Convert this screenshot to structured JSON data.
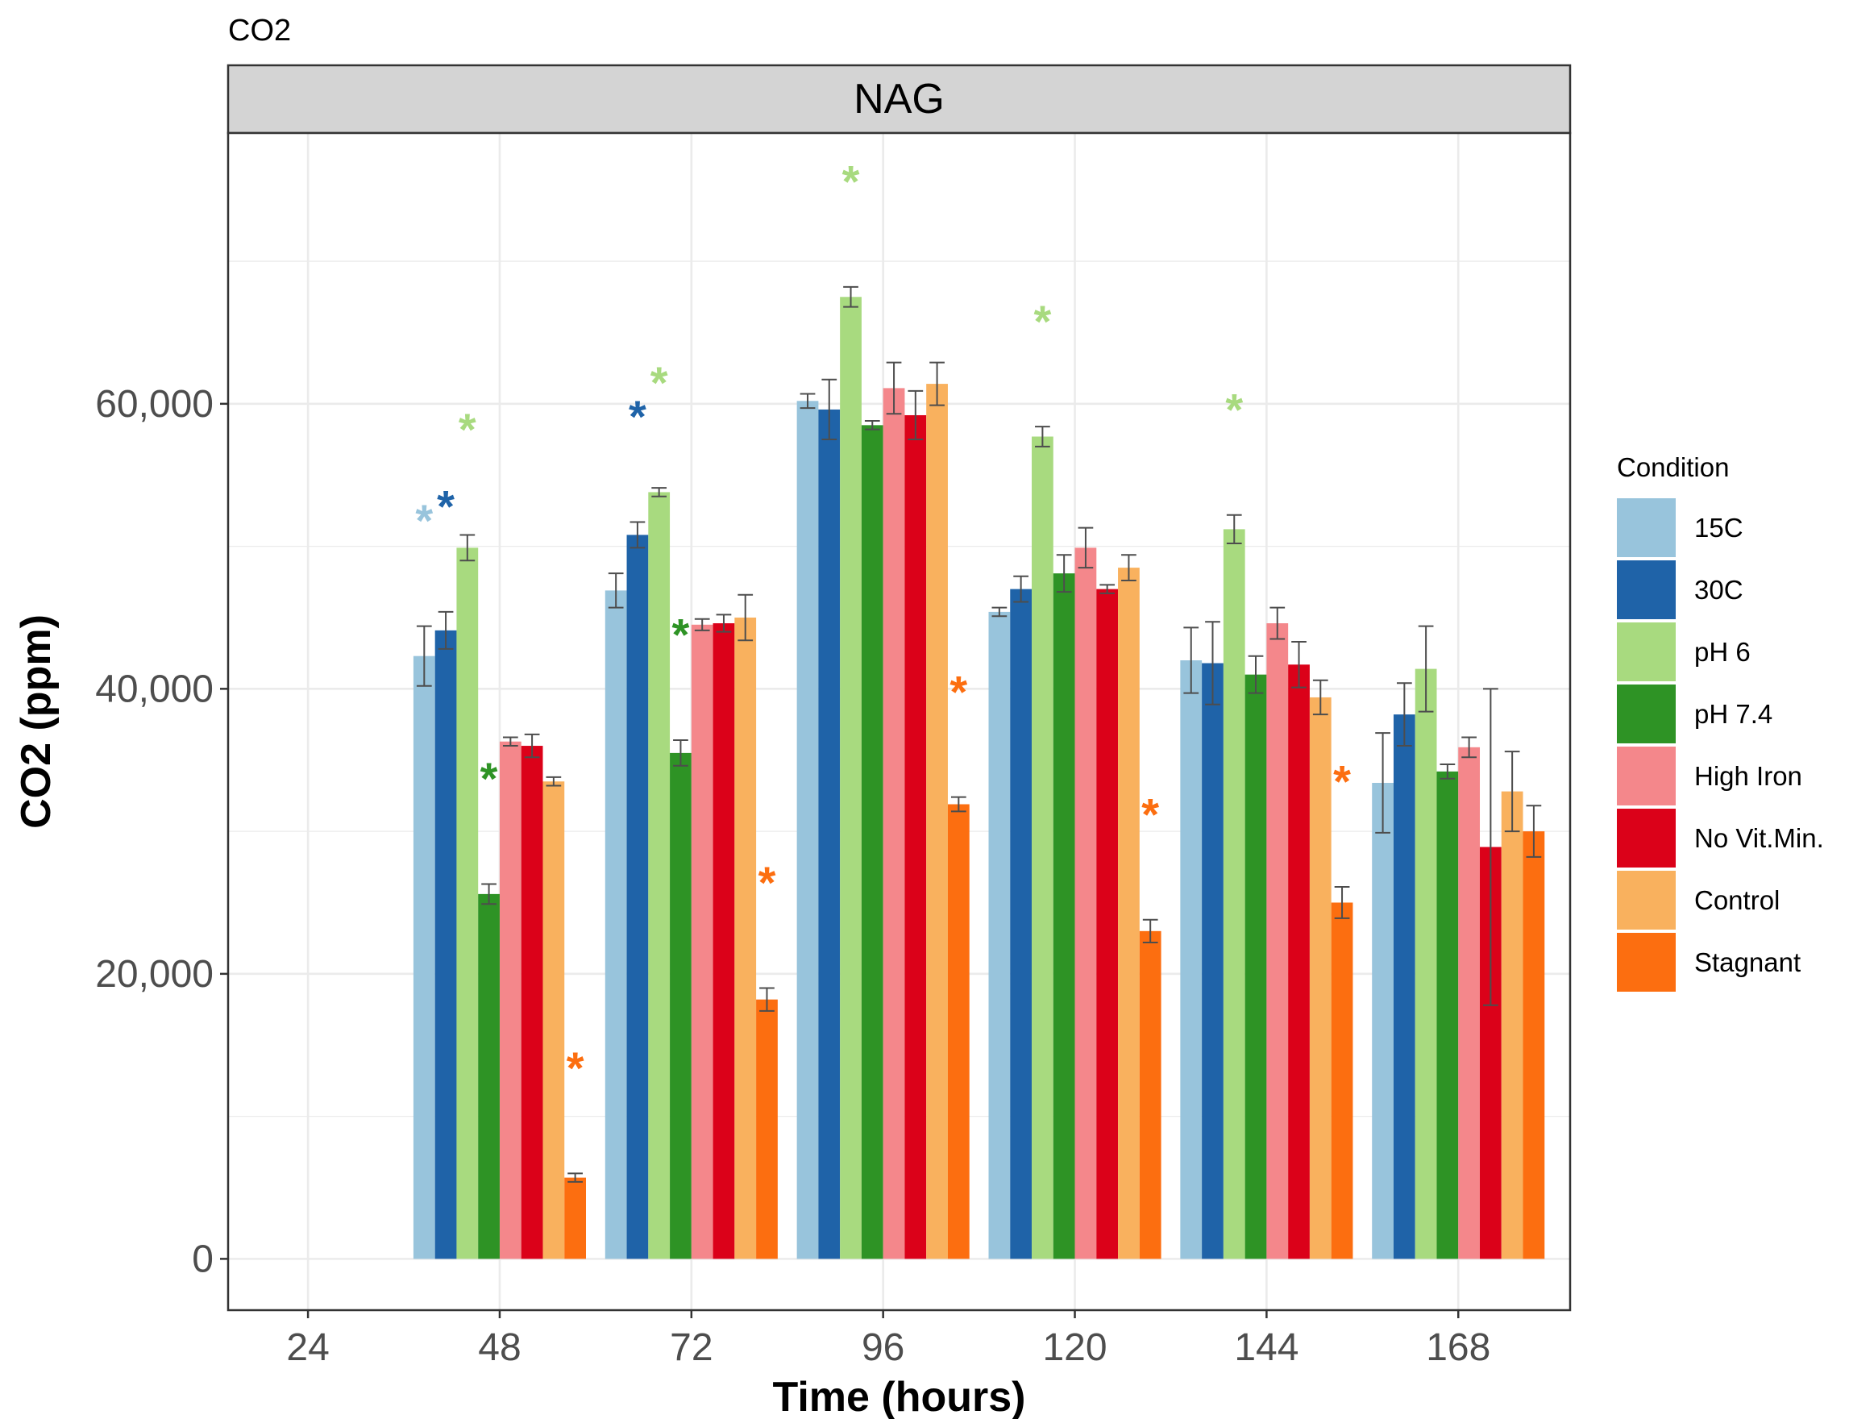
{
  "chart_data": {
    "type": "bar",
    "title": "CO2",
    "facet_label": "NAG",
    "xlabel": "Time (hours)",
    "ylabel": "CO2 (ppm)",
    "x_ticks": [
      "24",
      "48",
      "72",
      "96",
      "120",
      "144",
      "168"
    ],
    "x_range": [
      14,
      182
    ],
    "y_ticks": [
      0,
      20000,
      40000,
      60000
    ],
    "y_tick_labels": [
      "0",
      "20,000",
      "40,000",
      "60,000"
    ],
    "ylim": [
      -3600,
      79000
    ],
    "grid": true,
    "legend": {
      "title": "Condition",
      "position": "right"
    },
    "timepoints": [
      48,
      72,
      96,
      120,
      144,
      168
    ],
    "series": [
      {
        "name": "15C",
        "color": "#98C4DC",
        "values": [
          42300,
          46900,
          60200,
          45400,
          42000,
          33400
        ],
        "errors": [
          2100,
          1200,
          500,
          300,
          2300,
          3500
        ],
        "significant": [
          true,
          false,
          false,
          false,
          false,
          false
        ]
      },
      {
        "name": "30C",
        "color": "#1F63A8",
        "values": [
          44100,
          50800,
          59600,
          47000,
          41800,
          38200
        ],
        "errors": [
          1300,
          900,
          2100,
          900,
          2900,
          2200
        ],
        "significant": [
          true,
          true,
          false,
          false,
          false,
          false
        ]
      },
      {
        "name": "pH 6",
        "color": "#A8DA7F",
        "values": [
          49900,
          53800,
          67500,
          57700,
          51200,
          41400
        ],
        "errors": [
          900,
          300,
          700,
          700,
          1000,
          3000
        ],
        "significant": [
          true,
          true,
          true,
          true,
          true,
          false
        ]
      },
      {
        "name": "pH 7.4",
        "color": "#2E9325",
        "values": [
          25600,
          35500,
          58500,
          48100,
          41000,
          34200
        ],
        "errors": [
          700,
          900,
          300,
          1300,
          1300,
          500
        ],
        "significant": [
          true,
          true,
          false,
          false,
          false,
          false
        ]
      },
      {
        "name": "High Iron",
        "color": "#F4878B",
        "values": [
          36300,
          44500,
          61100,
          49900,
          44600,
          35900
        ],
        "errors": [
          300,
          400,
          1800,
          1400,
          1100,
          700
        ],
        "significant": [
          false,
          false,
          false,
          false,
          false,
          false
        ]
      },
      {
        "name": "No Vit.Min.",
        "color": "#DB0119",
        "values": [
          36000,
          44600,
          59200,
          47000,
          41700,
          28900
        ],
        "errors": [
          800,
          600,
          1700,
          300,
          1600,
          11100
        ],
        "significant": [
          false,
          false,
          false,
          false,
          false,
          false
        ]
      },
      {
        "name": "Control",
        "color": "#F9B15E",
        "values": [
          33500,
          45000,
          61400,
          48500,
          39400,
          32800
        ],
        "errors": [
          300,
          1600,
          1500,
          900,
          1200,
          2800
        ],
        "significant": [
          false,
          false,
          false,
          false,
          false,
          false
        ]
      },
      {
        "name": "Stagnant",
        "color": "#FC6E10",
        "values": [
          5700,
          18200,
          31900,
          23000,
          25000,
          30000
        ],
        "errors": [
          300,
          800,
          500,
          800,
          1100,
          1800
        ],
        "significant": [
          true,
          true,
          true,
          true,
          true,
          false
        ]
      }
    ]
  }
}
